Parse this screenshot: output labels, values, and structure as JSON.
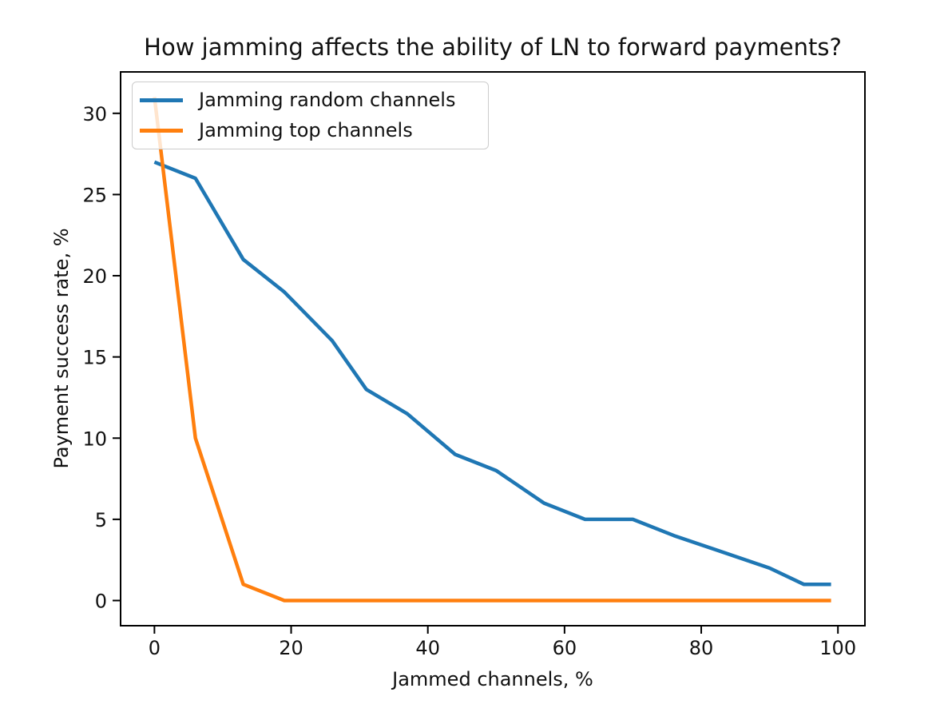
{
  "chart_data": {
    "type": "line",
    "title": "How jamming affects the ability of LN to forward payments?",
    "xlabel": "Jammed channels, %",
    "ylabel": "Payment success rate, %",
    "xlim": [
      -4.95,
      103.95
    ],
    "ylim": [
      -1.55,
      32.55
    ],
    "x_ticks": [
      0,
      20,
      40,
      60,
      80,
      100
    ],
    "x_tick_labels": [
      "0",
      "20",
      "40",
      "60",
      "80",
      "100"
    ],
    "y_ticks": [
      0,
      5,
      10,
      15,
      20,
      25,
      30
    ],
    "y_tick_labels": [
      "0",
      "5",
      "10",
      "15",
      "20",
      "25",
      "30"
    ],
    "grid": false,
    "legend_position": "upper-left",
    "background_color": "#ffffff",
    "axes_color": "#000000",
    "text_color": "#111111",
    "series": [
      {
        "name": "Jamming random channels",
        "color": "#1f77b4",
        "x": [
          0,
          6,
          13,
          19,
          26,
          31,
          37,
          44,
          50,
          57,
          63,
          70,
          76,
          83,
          90,
          95,
          99
        ],
        "y": [
          27,
          26,
          21,
          19,
          16,
          13,
          11.5,
          9,
          8,
          6,
          5,
          5,
          4,
          3,
          2,
          1,
          1
        ]
      },
      {
        "name": "Jamming top channels",
        "color": "#ff7f0e",
        "x": [
          0,
          6,
          13,
          19,
          26,
          31,
          37,
          44,
          50,
          57,
          63,
          70,
          76,
          83,
          90,
          95,
          99
        ],
        "y": [
          31,
          10,
          1,
          0,
          0,
          0,
          0,
          0,
          0,
          0,
          0,
          0,
          0,
          0,
          0,
          0,
          0
        ]
      }
    ]
  }
}
